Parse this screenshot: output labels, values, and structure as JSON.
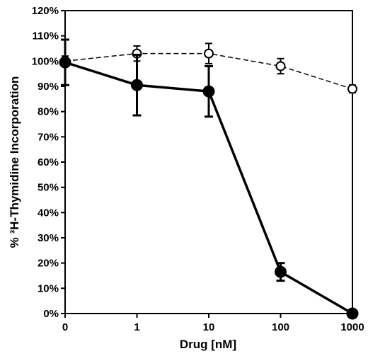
{
  "chart_data": {
    "type": "line",
    "xlabel": "Drug [nM]",
    "ylabel": "% ³H-Thymidine Incorporation",
    "x_tick_labels": [
      "0",
      "1",
      "10",
      "100",
      "1000"
    ],
    "y_tick_labels": [
      "0%",
      "10%",
      "20%",
      "30%",
      "40%",
      "50%",
      "60%",
      "70%",
      "80%",
      "90%",
      "100%",
      "110%",
      "120%"
    ],
    "ylim": [
      0,
      120
    ],
    "x_scale": "log (first tick at 0)",
    "grid": false,
    "legend": "none",
    "series": [
      {
        "style": "solid line, filled circle markers",
        "color": "#000000",
        "x": [
          "0",
          "1",
          "10",
          "100",
          "1000"
        ],
        "values": [
          99.5,
          90.5,
          88,
          16.5,
          0
        ],
        "error": [
          9,
          12,
          10,
          3.5,
          0
        ]
      },
      {
        "style": "dashed line, open circle markers",
        "color": "#000000",
        "x": [
          "0",
          "1",
          "10",
          "100",
          "1000"
        ],
        "values": [
          100,
          103,
          103,
          98,
          89
        ],
        "error": [
          2,
          3,
          4,
          3,
          1.5
        ]
      }
    ]
  }
}
